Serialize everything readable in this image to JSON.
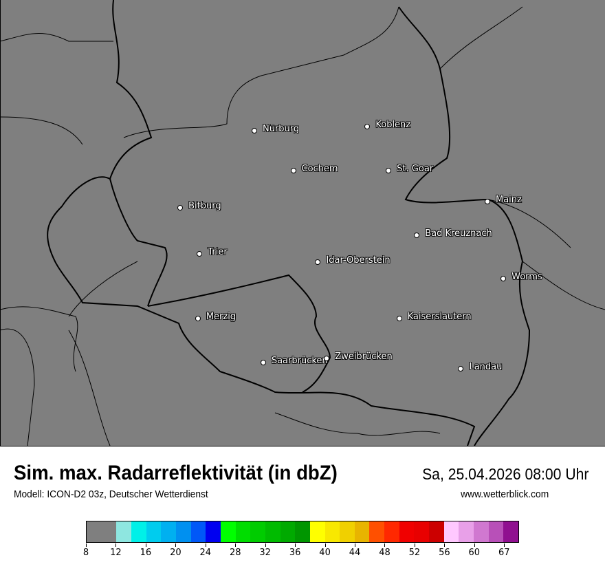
{
  "header": {
    "title": "Sim. max. Radarreflektivität (in dbZ)",
    "datetime": "Sa, 25.04.2026 08:00 Uhr",
    "model": "Modell: ICON-D2 03z, Deutscher Wetterdienst",
    "website": "www.wetterblick.com"
  },
  "map": {
    "background_color": "#7f7f7f",
    "cities": [
      {
        "name": "Nürburg",
        "lon": 6.95,
        "lat": 50.34
      },
      {
        "name": "Koblenz",
        "lon": 7.59,
        "lat": 50.36
      },
      {
        "name": "Cochem",
        "lon": 7.17,
        "lat": 50.15
      },
      {
        "name": "St. Goar",
        "lon": 7.71,
        "lat": 50.15
      },
      {
        "name": "Mainz",
        "lon": 8.27,
        "lat": 50.0
      },
      {
        "name": "Bitburg",
        "lon": 6.53,
        "lat": 49.97
      },
      {
        "name": "Bad Kreuznach",
        "lon": 7.87,
        "lat": 49.84
      },
      {
        "name": "Trier",
        "lon": 6.64,
        "lat": 49.75
      },
      {
        "name": "Idar-Oberstein",
        "lon": 7.31,
        "lat": 49.71
      },
      {
        "name": "Worms",
        "lon": 8.36,
        "lat": 49.63
      },
      {
        "name": "Merzig",
        "lon": 6.63,
        "lat": 49.44
      },
      {
        "name": "Kaiserslautern",
        "lon": 7.77,
        "lat": 49.44
      },
      {
        "name": "Saarbrücken",
        "lon": 7.0,
        "lat": 49.23
      },
      {
        "name": "Zweibrücken",
        "lon": 7.36,
        "lat": 49.25
      },
      {
        "name": "Landau",
        "lon": 8.12,
        "lat": 49.2
      }
    ]
  },
  "legend": {
    "colors": [
      "#7f7f7f",
      "#8ee6e0",
      "#00f0e8",
      "#00ccee",
      "#00b0f0",
      "#0090f0",
      "#0058f8",
      "#0000f0",
      "#00ff00",
      "#00dd00",
      "#00cc00",
      "#00bb00",
      "#00aa00",
      "#009600",
      "#ffff00",
      "#f8e800",
      "#f0d000",
      "#e8b400",
      "#ff5000",
      "#ff2800",
      "#f00000",
      "#e80000",
      "#cc0000",
      "#ffc8ff",
      "#e8a0e8",
      "#d078d0",
      "#b850b8",
      "#901090"
    ],
    "ticks": [
      "8",
      "12",
      "16",
      "20",
      "24",
      "28",
      "32",
      "36",
      "40",
      "44",
      "48",
      "52",
      "56",
      "60",
      "67"
    ]
  }
}
